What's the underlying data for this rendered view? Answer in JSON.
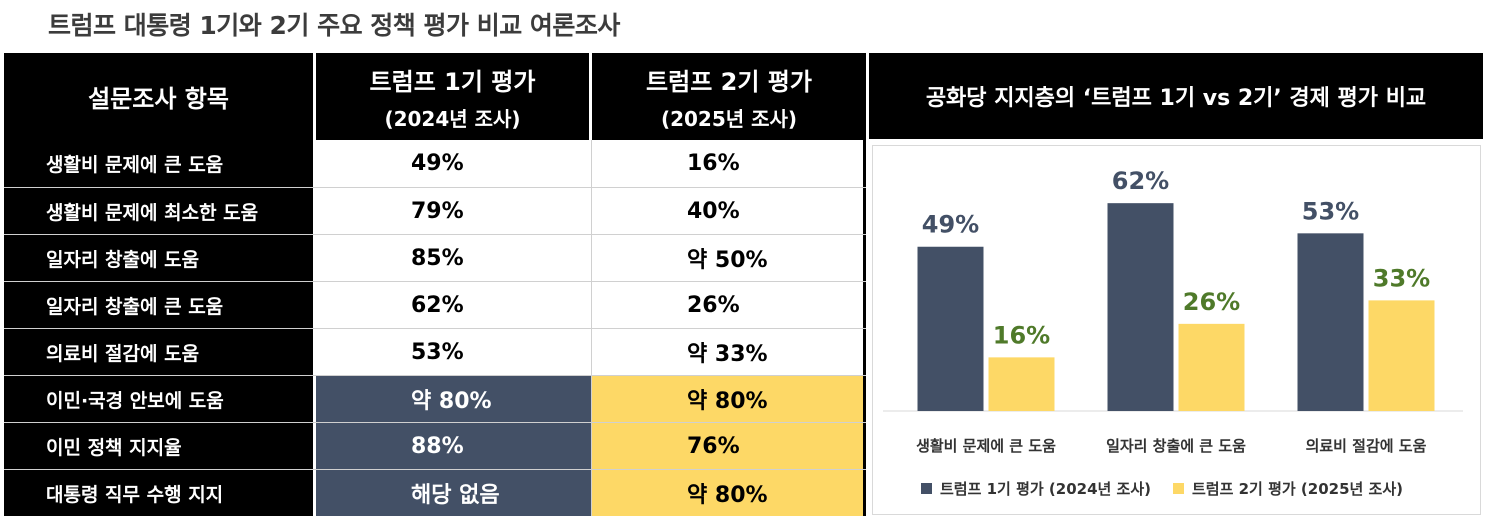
{
  "title": "트럼프 대통령 1기와 2기 주요 정책 평가 비교 여론조사",
  "table": {
    "headers": [
      {
        "main": "설문조사 항목",
        "sub": ""
      },
      {
        "main": "트럼프 1기 평가",
        "sub": "(2024년 조사)"
      },
      {
        "main": "트럼프 2기 평가",
        "sub": "(2025년 조사)"
      }
    ],
    "rows": [
      {
        "label": "생활비 문제에 큰 도움",
        "v1": "49%",
        "v2": "16%",
        "style": "plain"
      },
      {
        "label": "생활비 문제에 최소한 도움",
        "v1": "79%",
        "v2": "40%",
        "style": "plain"
      },
      {
        "label": "일자리 창출에 도움",
        "v1": "85%",
        "v2": "약 50%",
        "style": "plain"
      },
      {
        "label": "일자리 창출에 큰 도움",
        "v1": "62%",
        "v2": "26%",
        "style": "plain"
      },
      {
        "label": "의료비 절감에 도움",
        "v1": "53%",
        "v2": "약 33%",
        "style": "plain"
      },
      {
        "label": "이민·국경 안보에 도움",
        "v1": "약 80%",
        "v2": "약 80%",
        "style": "highlight"
      },
      {
        "label": "이민 정책 지지율",
        "v1": "88%",
        "v2": "76%",
        "style": "highlight"
      },
      {
        "label": "대통령 직무 수행 지지",
        "v1": "해당 없음",
        "v2": "약 80%",
        "style": "highlight"
      }
    ]
  },
  "chart_header": "공화당 지지층의 ‘트럼프 1기 vs 2기’ 경제 평가 비교",
  "colors": {
    "series1": "#435066",
    "series2": "#fdd866",
    "label1": "#435066",
    "label2": "#4f7a2a"
  },
  "chart_data": {
    "type": "bar",
    "title": "공화당 지지층의 ‘트럼프 1기 vs 2기’ 경제 평가 비교",
    "categories": [
      "생활비 문제에 큰 도움",
      "일자리 창출에 큰 도움",
      "의료비 절감에 도움"
    ],
    "series": [
      {
        "name": "트럼프 1기 평가 (2024년 조사)",
        "values": [
          49,
          62,
          53
        ],
        "labels": [
          "49%",
          "62%",
          "53%"
        ]
      },
      {
        "name": "트럼프 2기 평가 (2025년 조사)",
        "values": [
          16,
          26,
          33
        ],
        "labels": [
          "16%",
          "26%",
          "33%"
        ]
      }
    ],
    "ylim": [
      0,
      70
    ],
    "grid": false,
    "legend": "bottom"
  }
}
